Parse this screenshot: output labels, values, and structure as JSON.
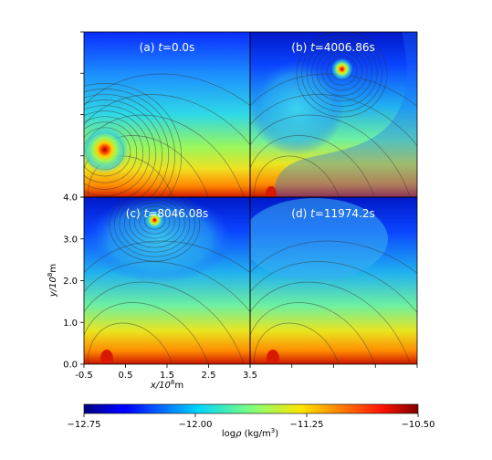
{
  "chart_data": {
    "type": "heatmap",
    "layout": "2x2 panels",
    "colormap": "jet",
    "panels": [
      {
        "label_prefix": "(a) ",
        "t_label": "t",
        "t_value": "=0.0s",
        "blob": {
          "x": 0.0,
          "y": 1.15,
          "strength": 1.0
        }
      },
      {
        "label_prefix": "(b) ",
        "t_label": "t",
        "t_value": "=4006.86s",
        "blob": {
          "x": 1.7,
          "y": 3.1,
          "strength": 0.9
        }
      },
      {
        "label_prefix": "(c) ",
        "t_label": "t",
        "t_value": "=8046.08s",
        "blob": {
          "x": 1.2,
          "y": 3.45,
          "strength": 0.85
        }
      },
      {
        "label_prefix": "(d) ",
        "t_label": "t",
        "t_value": "=11974.2s",
        "blob": {
          "x": null,
          "y": null,
          "strength": 0.0
        }
      }
    ],
    "x_axis": {
      "label": "x/10",
      "label_sup": "8",
      "label_unit": "m",
      "range": [
        -0.5,
        3.5
      ],
      "ticks": [
        "-0.5",
        "0.5",
        "1.5",
        "2.5",
        "3.5"
      ]
    },
    "y_axis": {
      "label": "y/10",
      "label_sup": "8",
      "label_unit": "m",
      "range": [
        0.0,
        4.0
      ],
      "ticks": [
        "0.0",
        "1.0",
        "2.0",
        "3.0",
        "4.0"
      ]
    },
    "colorbar": {
      "range": [
        -12.75,
        -10.5
      ],
      "ticks": [
        "-12.75",
        "-12.00",
        "-11.25",
        "-10.50"
      ],
      "label_main": "log",
      "label_rho": "ρ",
      "label_unit": " (kg/m",
      "label_sup": "3",
      "label_close": ")"
    }
  }
}
